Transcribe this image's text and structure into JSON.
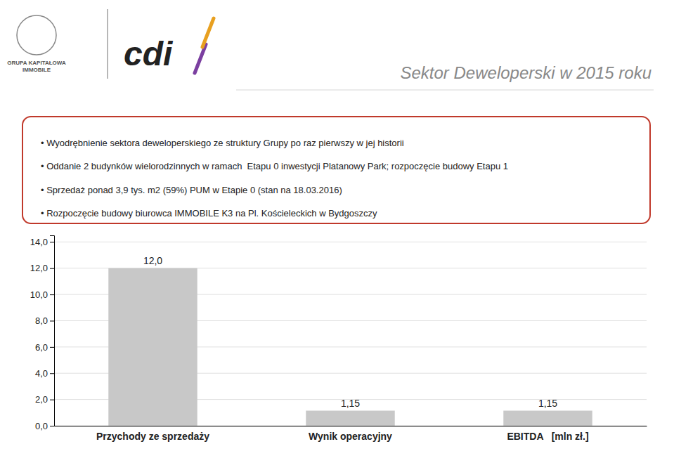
{
  "chart_data": {
    "type": "bar",
    "title": "Sektor Deweloperski w 2015 roku",
    "categories": [
      "Przychody ze sprzedaży",
      "Wynik operacyjny",
      "EBITDA   [mln zł.]"
    ],
    "values": [
      12.0,
      1.15,
      1.15
    ],
    "value_labels": [
      "12,0",
      "1,15",
      "1,15"
    ],
    "data_labels": true,
    "color": "#c8c8c8",
    "ylim": [
      0,
      14.5
    ],
    "yticks": [
      {
        "value": 0.0,
        "label": "0,0"
      },
      {
        "value": 2.0,
        "label": "2,0"
      },
      {
        "value": 4.0,
        "label": "4,0"
      },
      {
        "value": 6.0,
        "label": "6,0"
      },
      {
        "value": 8.0,
        "label": "8,0"
      },
      {
        "value": 10.0,
        "label": "10,0"
      },
      {
        "value": 12.0,
        "label": "12,0"
      },
      {
        "value": 14.0,
        "label": "14,0"
      }
    ],
    "grid": true,
    "annotations": [
      "• Wyodrębnienie sektora deweloperskiego ze struktury Grupy po raz pierwszy w jej historii",
      "• Oddanie 2 budynków wielorodzinnych w ramach  Etapu 0 inwestycji Platanowy Park; rozpoczęcie budowy Etapu 1",
      "• Sprzedaż ponad 3,9 tys. m2 (59%) PUM w Etapie 0 (stan na 18.03.2016)",
      "• Rozpoczęcie budowy biurowca IMMOBILE K3 na Pl. Kościeleckich w Bydgoszczy",
      "GRUPA KAPITAŁOWA\nIMMOBILE",
      "cdi"
    ]
  }
}
